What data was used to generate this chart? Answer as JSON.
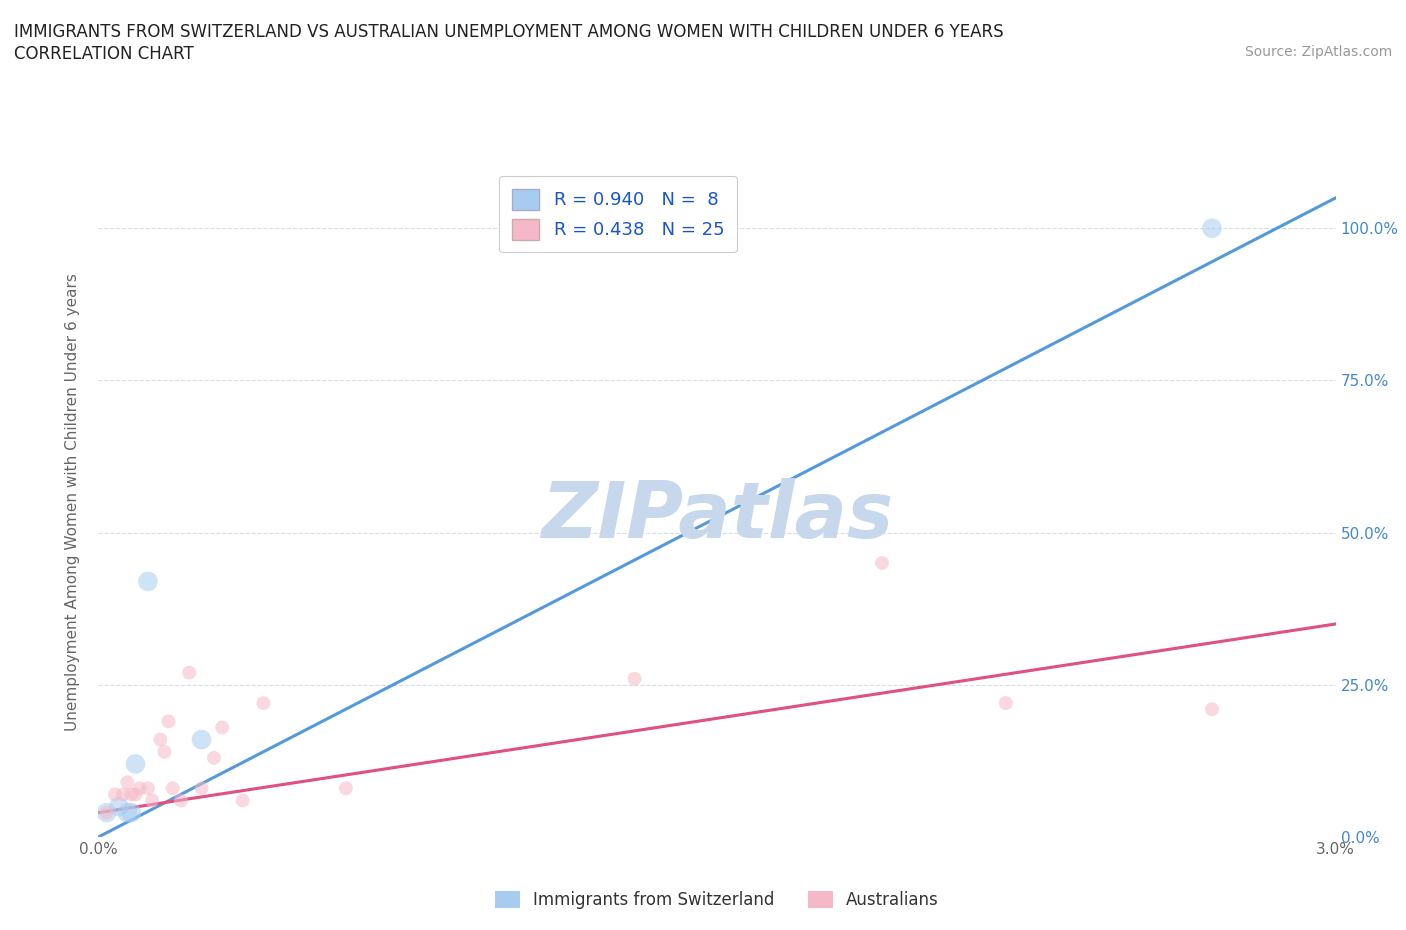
{
  "title_line1": "IMMIGRANTS FROM SWITZERLAND VS AUSTRALIAN UNEMPLOYMENT AMONG WOMEN WITH CHILDREN UNDER 6 YEARS",
  "title_line2": "CORRELATION CHART",
  "source_text": "Source: ZipAtlas.com",
  "ylabel": "Unemployment Among Women with Children Under 6 years",
  "watermark": "ZIPatlas",
  "xlim": [
    0.0,
    0.03
  ],
  "ylim": [
    0.0,
    1.1
  ],
  "yticks": [
    0.0,
    0.25,
    0.5,
    0.75,
    1.0
  ],
  "ytick_labels_right": [
    "0.0%",
    "25.0%",
    "50.0%",
    "75.0%",
    "100.0%"
  ],
  "xticks": [
    0.0,
    0.005,
    0.01,
    0.015,
    0.02,
    0.025,
    0.03
  ],
  "xtick_labels": [
    "0.0%",
    "",
    "",
    "",
    "",
    "",
    "3.0%"
  ],
  "swiss_scatter_x": [
    0.0002,
    0.0005,
    0.0007,
    0.0008,
    0.0009,
    0.0012,
    0.0025,
    0.027
  ],
  "swiss_scatter_y": [
    0.04,
    0.05,
    0.04,
    0.04,
    0.12,
    0.42,
    0.16,
    1.0
  ],
  "aus_scatter_x": [
    0.0002,
    0.0004,
    0.0006,
    0.0007,
    0.0008,
    0.0009,
    0.001,
    0.0012,
    0.0013,
    0.0015,
    0.0016,
    0.0017,
    0.0018,
    0.002,
    0.0022,
    0.0025,
    0.0028,
    0.003,
    0.0035,
    0.004,
    0.006,
    0.013,
    0.019,
    0.022,
    0.027
  ],
  "aus_scatter_y": [
    0.04,
    0.07,
    0.07,
    0.09,
    0.07,
    0.07,
    0.08,
    0.08,
    0.06,
    0.16,
    0.14,
    0.19,
    0.08,
    0.06,
    0.27,
    0.08,
    0.13,
    0.18,
    0.06,
    0.22,
    0.08,
    0.26,
    0.45,
    0.22,
    0.21
  ],
  "swiss_line_x": [
    0.0,
    0.03
  ],
  "swiss_line_y": [
    0.0,
    1.05
  ],
  "aus_line_x": [
    0.0,
    0.03
  ],
  "aus_line_y": [
    0.04,
    0.35
  ],
  "swiss_color": "#a8ccf0",
  "aus_color": "#f5b8c8",
  "swiss_line_color": "#5599dd",
  "aus_line_color": "#e05080",
  "r_swiss": "0.940",
  "n_swiss": "8",
  "r_aus": "0.438",
  "n_aus": "25",
  "legend_label_swiss": "Immigrants from Switzerland",
  "legend_label_aus": "Australians",
  "bg_color": "#ffffff",
  "grid_color": "#d8dce8",
  "title_color": "#222222",
  "axis_label_color": "#666666",
  "legend_text_color": "#1a55cc",
  "watermark_color": "#c8d8ec",
  "scatter_size_swiss": 200,
  "scatter_size_aus": 100,
  "scatter_alpha": 0.55,
  "right_ytick_color": "#4488cc"
}
